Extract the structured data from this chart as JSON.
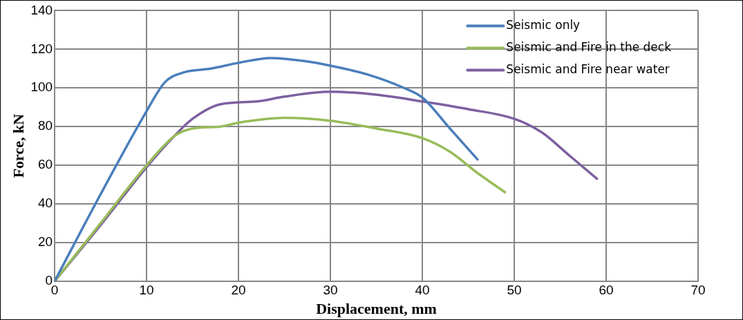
{
  "chart_data": {
    "type": "line",
    "xlabel": "Displacement, mm",
    "ylabel": "Force, kN",
    "xlim": [
      0,
      70
    ],
    "xticks": [
      0,
      10,
      20,
      30,
      40,
      50,
      60,
      70
    ],
    "ylim": [
      0,
      140
    ],
    "yticks": [
      0,
      20,
      40,
      60,
      80,
      100,
      120,
      140
    ],
    "grid": true,
    "legend": "top right",
    "marker": "none",
    "line_style": "solid",
    "series": [
      {
        "name": "Seismic only",
        "color": "#4a7ebb",
        "x": [
          0,
          5,
          10,
          12,
          14,
          17,
          20,
          23.5,
          27,
          30,
          34,
          38,
          40,
          43,
          46
        ],
        "values": [
          0,
          45,
          88,
          103,
          108,
          110,
          113,
          115.5,
          114,
          111.5,
          107,
          100,
          95,
          79,
          63
        ]
      },
      {
        "name": "Seismic and Fire in the deck",
        "color": "#98bb59",
        "x": [
          0,
          5,
          10,
          13,
          15,
          18,
          20,
          25,
          30,
          35,
          40,
          43,
          46,
          49
        ],
        "values": [
          0,
          30,
          60,
          75,
          79,
          80,
          82,
          84.5,
          83,
          79,
          74,
          67,
          56,
          46
        ]
      },
      {
        "name": "Seismic and Fire near water",
        "color": "#7d60a0",
        "x": [
          0,
          5,
          10,
          13,
          15,
          18,
          22,
          25,
          30,
          35,
          40,
          45,
          50,
          53,
          56,
          59
        ],
        "values": [
          0,
          29,
          59,
          75,
          84,
          91.5,
          93,
          95.5,
          98,
          96.5,
          93,
          89,
          84,
          77,
          65,
          53
        ]
      }
    ]
  }
}
